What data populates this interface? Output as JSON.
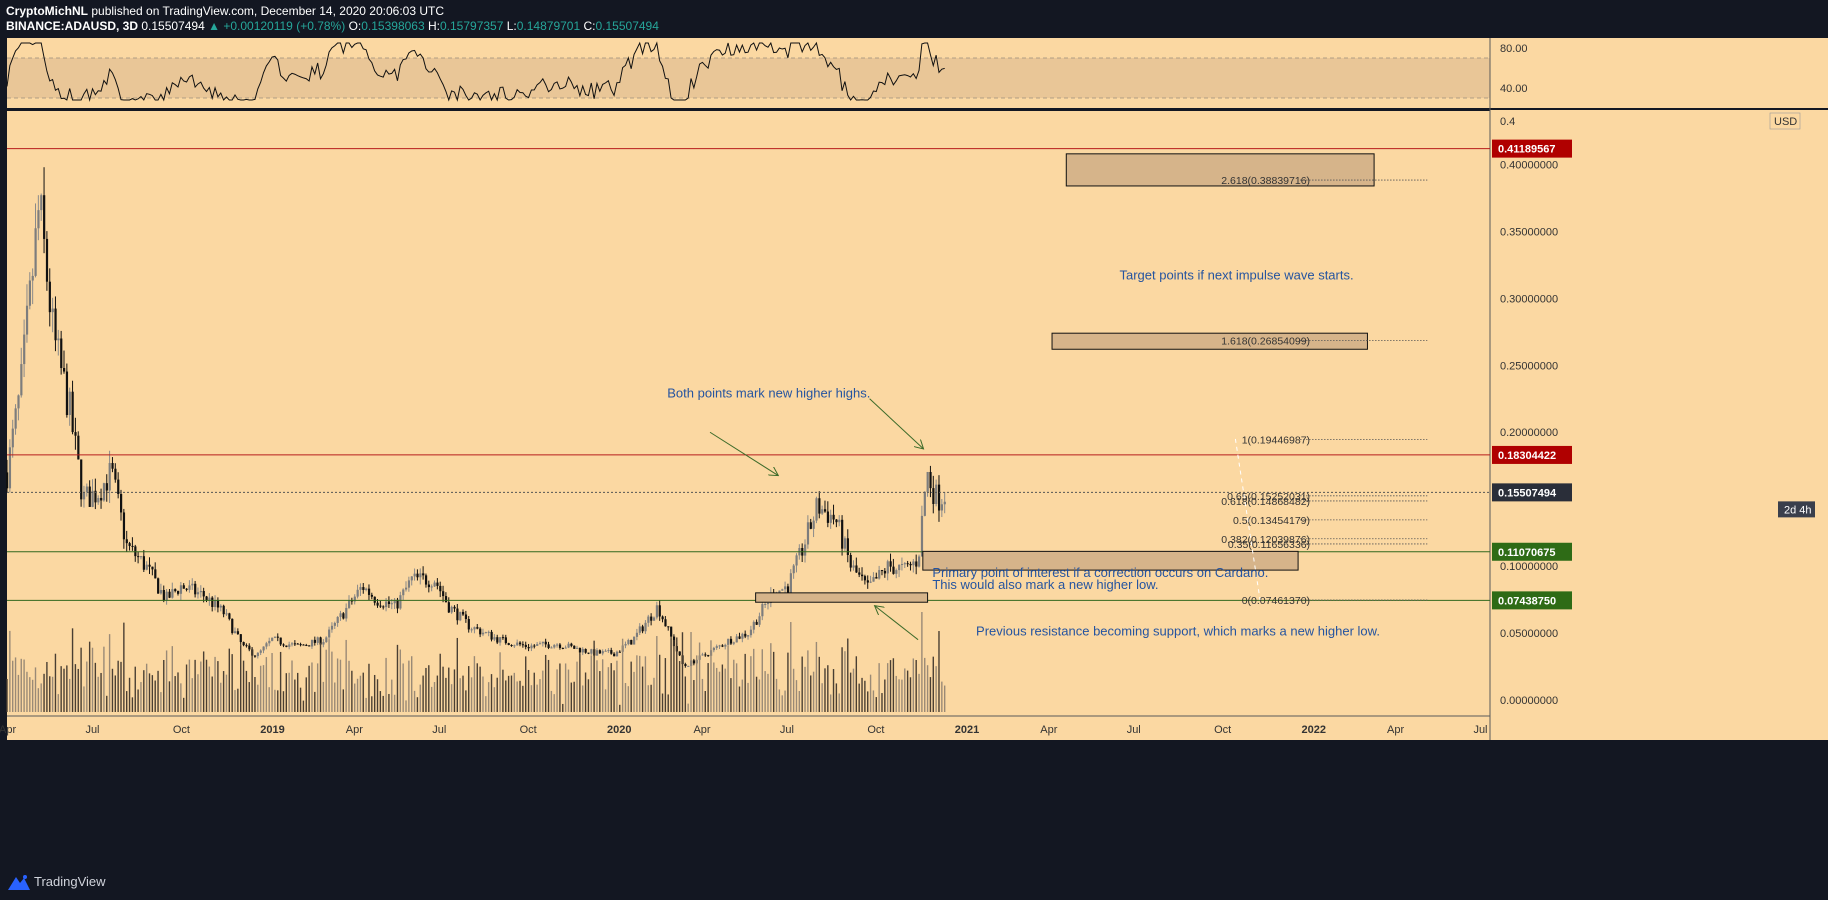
{
  "header": {
    "publisher": "CryptoMichNL",
    "published_text": "published on TradingView.com, December 14, 2020 20:06:03 UTC",
    "symbol": "BINANCE:ADAUSD, 3D",
    "last": "0.15507494",
    "change": "+0.00120119 (+0.78%)",
    "ohlc": [
      {
        "label": "O:",
        "value": "0.15398063"
      },
      {
        "label": "H:",
        "value": "0.15797357"
      },
      {
        "label": "L:",
        "value": "0.14879701"
      },
      {
        "label": "C:",
        "value": "0.15507494"
      }
    ]
  },
  "footer": {
    "brand": "TradingView"
  },
  "colors": {
    "chart_bg": "#fbd8a2",
    "band": "#e9c697",
    "frame": "#131722",
    "red_line": "#b71c1c",
    "green_line": "#33691e",
    "annotation_text": "#2554a0",
    "arrow": "#3d6b2a",
    "box_fill": "#d6b48a",
    "candle": "#111111",
    "wick_gray": "#8a8a8a"
  },
  "chart_data": {
    "type": "candlestick",
    "rsi": {
      "upper_level": 70,
      "lower_level": 30,
      "ticks": [
        "80.00",
        "40.00"
      ],
      "tick_values": [
        80,
        40
      ]
    },
    "price_axis": {
      "unit": "USD",
      "top_partial_label": "0.4",
      "ticks": [
        "0.40000000",
        "0.35000000",
        "0.30000000",
        "0.25000000",
        "0.20000000",
        "0.10000000",
        "0.05000000",
        "0.00000000"
      ],
      "tick_values": [
        0.4,
        0.35,
        0.3,
        0.25,
        0.2,
        0.1,
        0.05,
        0.0
      ],
      "ylim": [
        -0.012,
        0.44
      ]
    },
    "time_axis": {
      "labels": [
        "Apr",
        "Jul",
        "Oct",
        "2019",
        "Apr",
        "Jul",
        "Oct",
        "2020",
        "Apr",
        "Jul",
        "Oct",
        "2021",
        "Apr",
        "Jul",
        "Oct",
        "2022",
        "Apr",
        "Jul"
      ],
      "dates": [
        "2018-04-01",
        "2018-07-01",
        "2018-10-01",
        "2019-01-01",
        "2019-04-01",
        "2019-07-01",
        "2019-10-01",
        "2020-01-01",
        "2020-04-01",
        "2020-07-01",
        "2020-10-01",
        "2021-01-01",
        "2021-04-01",
        "2021-07-01",
        "2021-10-01",
        "2022-01-01",
        "2022-04-01",
        "2022-07-01"
      ],
      "xlim": [
        "2018-04-01",
        "2022-07-10"
      ]
    },
    "price_series": [
      [
        "2018-04-01",
        0.17
      ],
      [
        "2018-04-15",
        0.23
      ],
      [
        "2018-04-28",
        0.32
      ],
      [
        "2018-05-05",
        0.37
      ],
      [
        "2018-05-20",
        0.27
      ],
      [
        "2018-06-05",
        0.22
      ],
      [
        "2018-06-20",
        0.15
      ],
      [
        "2018-07-05",
        0.155
      ],
      [
        "2018-07-20",
        0.17
      ],
      [
        "2018-08-05",
        0.115
      ],
      [
        "2018-08-25",
        0.1
      ],
      [
        "2018-09-15",
        0.075
      ],
      [
        "2018-10-01",
        0.085
      ],
      [
        "2018-10-25",
        0.078
      ],
      [
        "2018-11-15",
        0.065
      ],
      [
        "2018-12-05",
        0.04
      ],
      [
        "2018-12-20",
        0.033
      ],
      [
        "2019-01-05",
        0.045
      ],
      [
        "2019-02-01",
        0.04
      ],
      [
        "2019-03-01",
        0.045
      ],
      [
        "2019-04-10",
        0.085
      ],
      [
        "2019-04-25",
        0.075
      ],
      [
        "2019-05-15",
        0.07
      ],
      [
        "2019-06-01",
        0.09
      ],
      [
        "2019-06-25",
        0.09
      ],
      [
        "2019-07-10",
        0.07
      ],
      [
        "2019-08-01",
        0.055
      ],
      [
        "2019-09-01",
        0.045
      ],
      [
        "2019-10-01",
        0.04
      ],
      [
        "2019-11-01",
        0.042
      ],
      [
        "2019-12-10",
        0.035
      ],
      [
        "2020-01-01",
        0.035
      ],
      [
        "2020-01-20",
        0.045
      ],
      [
        "2020-02-15",
        0.07
      ],
      [
        "2020-03-13",
        0.025
      ],
      [
        "2020-04-01",
        0.032
      ],
      [
        "2020-05-01",
        0.045
      ],
      [
        "2020-05-20",
        0.05
      ],
      [
        "2020-06-15",
        0.08
      ],
      [
        "2020-07-01",
        0.085
      ],
      [
        "2020-07-15",
        0.11
      ],
      [
        "2020-08-01",
        0.145
      ],
      [
        "2020-08-20",
        0.135
      ],
      [
        "2020-09-05",
        0.1
      ],
      [
        "2020-09-23",
        0.083
      ],
      [
        "2020-10-15",
        0.1
      ],
      [
        "2020-11-01",
        0.097
      ],
      [
        "2020-11-15",
        0.105
      ],
      [
        "2020-11-24",
        0.17
      ],
      [
        "2020-12-05",
        0.15
      ],
      [
        "2020-12-14",
        0.155
      ]
    ],
    "horizontal_lines": [
      {
        "label": "0.41189567",
        "value": 0.41189567,
        "color": "red"
      },
      {
        "label": "0.18304422",
        "value": 0.18304422,
        "color": "red"
      },
      {
        "label": "0.15507494",
        "value": 0.15507494,
        "color": "dark"
      },
      {
        "label": "0.11070675",
        "value": 0.11070675,
        "color": "green"
      },
      {
        "label": "0.07438750",
        "value": 0.0743875,
        "color": "green"
      }
    ],
    "countdown": "2d 4h",
    "fib_levels": [
      {
        "label": "2.618(0.38839716)",
        "value": 0.38839716
      },
      {
        "label": "1.618(0.26854099)",
        "value": 0.26854099
      },
      {
        "label": "1(0.19446987)",
        "value": 0.19446987
      },
      {
        "label": "0.65(0.15252031)",
        "value": 0.15252031
      },
      {
        "label": "0.618(0.14868482)",
        "value": 0.14868482
      },
      {
        "label": "0.5(0.13454179)",
        "value": 0.13454179
      },
      {
        "label": "0.382(0.12039876)",
        "value": 0.12039876
      },
      {
        "label": "0.35(0.11656336)",
        "value": 0.11656336
      },
      {
        "label": "0(0.07461370)",
        "value": 0.0746137
      }
    ],
    "zones": [
      {
        "x0": "2021-04-20",
        "x1": "2022-03-10",
        "y0": 0.384,
        "y1": 0.408
      },
      {
        "x0": "2021-04-05",
        "x1": "2022-03-03",
        "y0": 0.262,
        "y1": 0.274
      },
      {
        "x0": "2020-11-20",
        "x1": "2021-12-20",
        "y0": 0.097,
        "y1": 0.111
      },
      {
        "x0": "2020-05-28",
        "x1": "2020-11-25",
        "y0": 0.073,
        "y1": 0.08
      }
    ],
    "annotations": [
      {
        "text": "Target points if next impulse wave starts.",
        "x": "2021-06-15",
        "y": 0.314
      },
      {
        "text": "Both points mark new higher highs.",
        "x": "2020-02-25",
        "y": 0.226
      },
      {
        "text": "Primary point of interest if a correction occurs on Cardano.",
        "x": "2020-11-30",
        "y": 0.092
      },
      {
        "text": "This would also mark a new higher low.",
        "x": "2020-11-30",
        "y": 0.083
      },
      {
        "text": "Previous resistance becoming support, which marks a new higher low.",
        "x": "2021-01-15",
        "y": 0.048
      }
    ],
    "arrows": [
      {
        "x1": "2020-04-10",
        "y1": 0.2,
        "x2": "2020-06-20",
        "y2": 0.168
      },
      {
        "x1": "2020-09-25",
        "y1": 0.225,
        "x2": "2020-11-20",
        "y2": 0.188
      },
      {
        "x1": "2020-11-15",
        "y1": 0.045,
        "x2": "2020-10-01",
        "y2": 0.07
      }
    ],
    "dashed_path": [
      [
        "2021-10-15",
        0.195
      ],
      [
        "2021-11-10",
        0.0746
      ]
    ]
  }
}
